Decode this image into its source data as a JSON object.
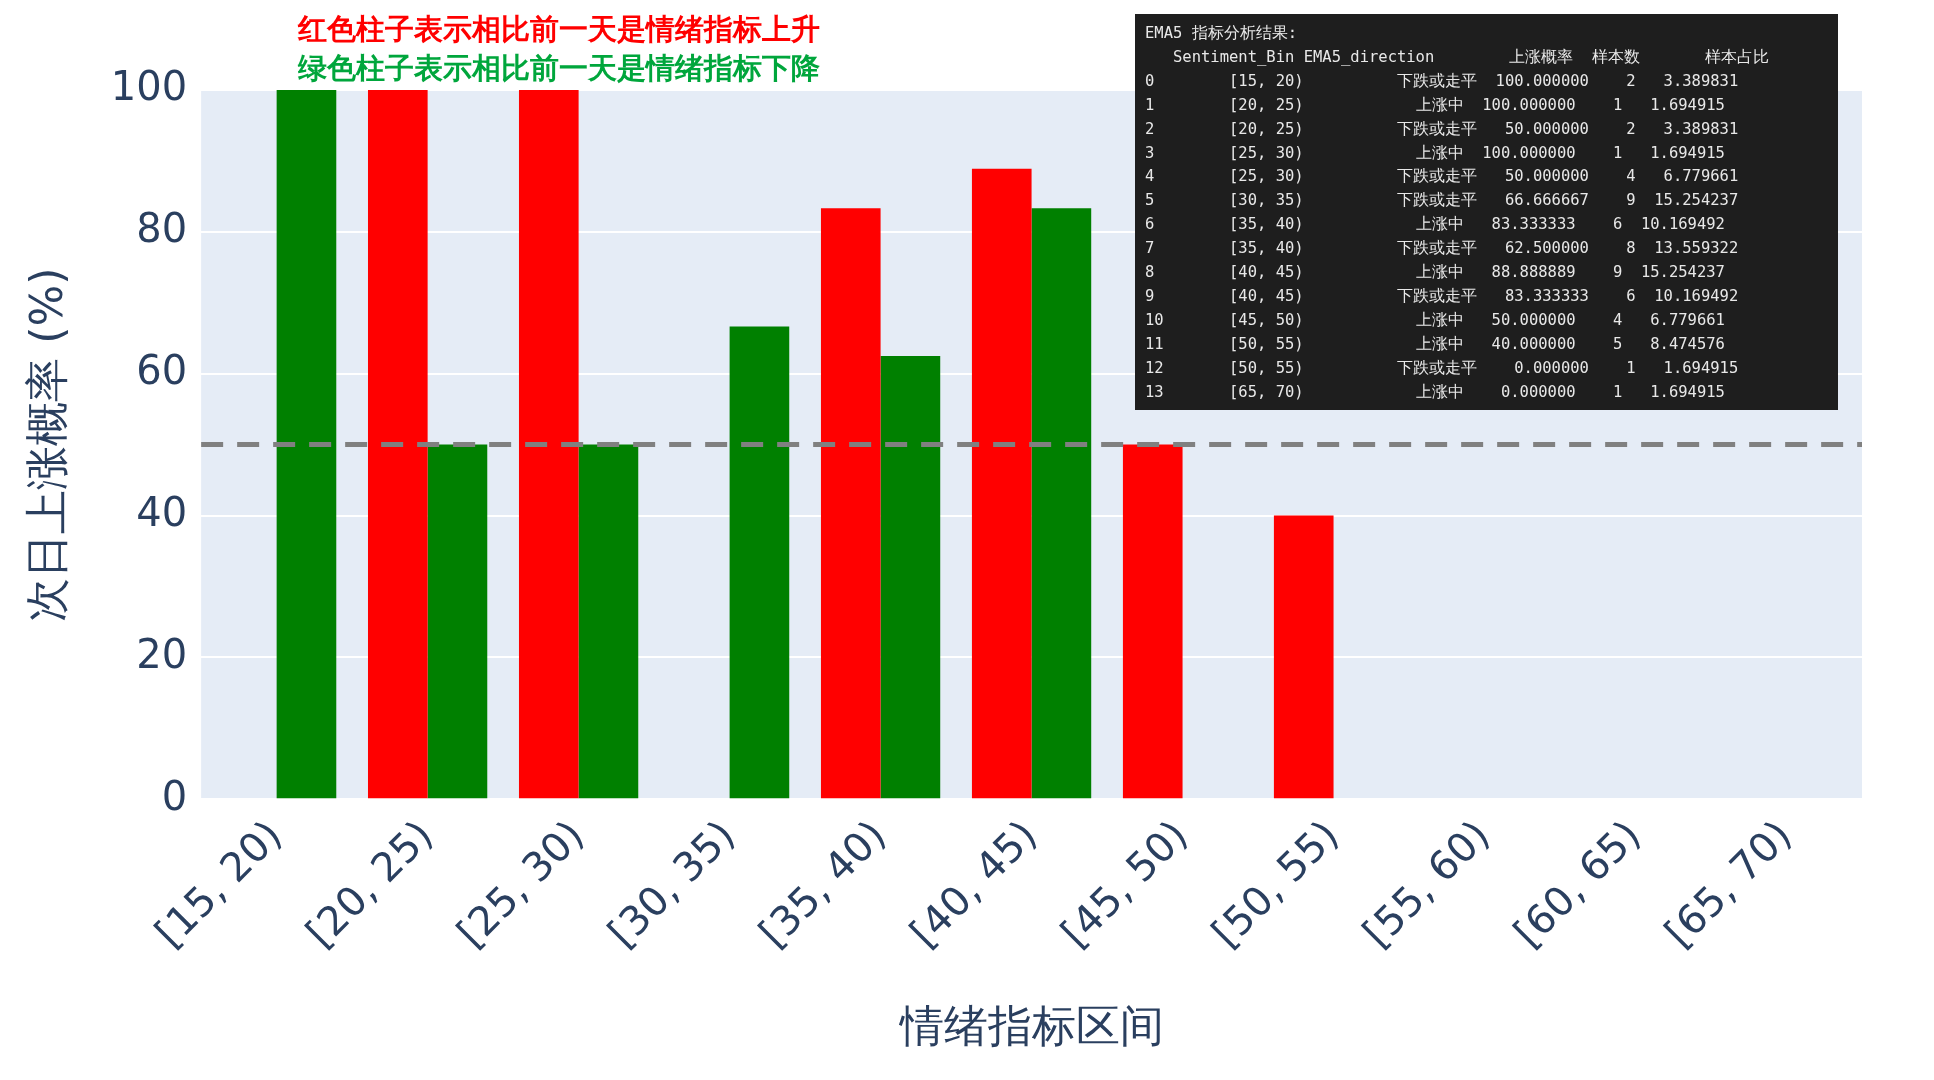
{
  "chart_data": {
    "type": "bar",
    "xlabel": "情绪指标区间",
    "ylabel": "次日上涨概率 (%)",
    "categories": [
      "[15, 20)",
      "[20, 25)",
      "[25, 30)",
      "[30, 35)",
      "[35, 40)",
      "[40, 45)",
      "[45, 50)",
      "[50, 55)",
      "[55, 60)",
      "[60, 65)",
      "[65, 70)"
    ],
    "series": [
      {
        "color": "#ff0000",
        "values": [
          null,
          100,
          100,
          null,
          83.333333,
          88.888889,
          50,
          40,
          null,
          null,
          0
        ]
      },
      {
        "color": "#008000",
        "values": [
          100,
          50,
          50,
          66.666667,
          62.5,
          83.333333,
          null,
          0,
          null,
          null,
          null
        ]
      }
    ],
    "ylim": [
      0,
      100
    ],
    "yticks": [
      0,
      20,
      40,
      60,
      80,
      100
    ],
    "grid": "y",
    "legend": false,
    "ref_lines": [
      {
        "axis": "y",
        "value": 50,
        "color": "#808080",
        "line_style": "dashed"
      }
    ],
    "annotations": [
      "红色柱子表示相比前一天是情绪指标上升",
      "绿色柱子表示相比前一天是情绪指标下降",
      "EMA5 指标分析结果:",
      "   Sentiment_Bin EMA5_direction        上涨概率  样本数       样本占比",
      "0        [15, 20)          下跌或走平  100.000000    2   3.389831",
      "1        [20, 25)            上涨中  100.000000    1   1.694915",
      "2        [20, 25)          下跌或走平   50.000000    2   3.389831",
      "3        [25, 30)            上涨中  100.000000    1   1.694915",
      "4        [25, 30)          下跌或走平   50.000000    4   6.779661",
      "5        [30, 35)          下跌或走平   66.666667    9  15.254237",
      "6        [35, 40)            上涨中   83.333333    6  10.169492",
      "7        [35, 40)          下跌或走平   62.500000    8  13.559322",
      "8        [40, 45)            上涨中   88.888889    9  15.254237",
      "9        [40, 45)          下跌或走平   83.333333    6  10.169492",
      "10       [45, 50)            上涨中   50.000000    4   6.779661",
      "11       [50, 55)            上涨中   40.000000    5   8.474576",
      "12       [50, 55)          下跌或走平    0.000000    1   1.694915",
      "13       [65, 70)            上涨中    0.000000    1   1.694915"
    ]
  }
}
